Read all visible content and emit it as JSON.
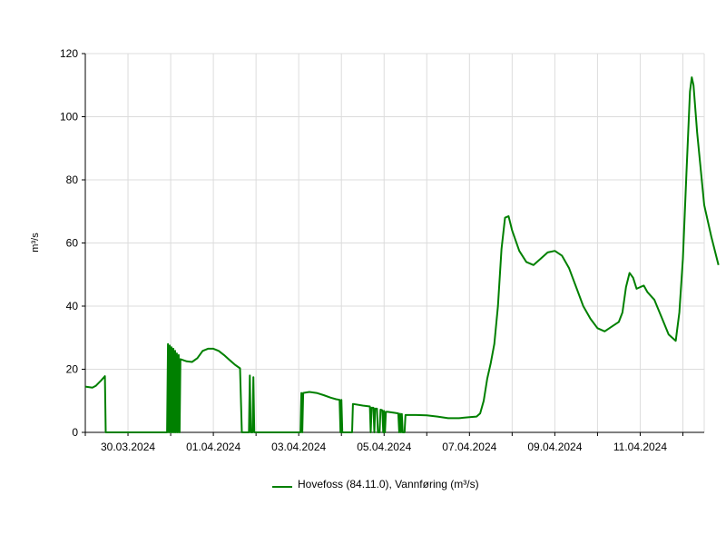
{
  "chart_data": {
    "type": "line",
    "ylabel": "m³/s",
    "ylim": [
      0,
      120
    ],
    "yticks": [
      0,
      20,
      40,
      60,
      80,
      100,
      120
    ],
    "x_start": "29.03.2024 00:00",
    "x_end": "12.04.2024 12:00",
    "xtick_labels": [
      "30.03.2024",
      "01.04.2024",
      "03.04.2024",
      "05.04.2024",
      "07.04.2024",
      "09.04.2024",
      "11.04.2024"
    ],
    "grid": true,
    "series": [
      {
        "name": "Hovefoss (84.11.0), Vannføring (m³/s)",
        "color": "#008000",
        "points": [
          [
            "29.03.2024 00:00",
            14.5
          ],
          [
            "29.03.2024 04:00",
            14.2
          ],
          [
            "29.03.2024 06:00",
            14.8
          ],
          [
            "29.03.2024 09:00",
            16.5
          ],
          [
            "29.03.2024 11:00",
            17.8
          ],
          [
            "29.03.2024 11:30",
            0
          ],
          [
            "30.03.2024 22:00",
            0
          ],
          [
            "30.03.2024 22:30",
            28.0
          ],
          [
            "30.03.2024 23:00",
            0
          ],
          [
            "30.03.2024 23:30",
            27.5
          ],
          [
            "31.03.2024 00:00",
            0
          ],
          [
            "31.03.2024 00:30",
            27.0
          ],
          [
            "31.03.2024 01:00",
            0
          ],
          [
            "31.03.2024 01:30",
            26.5
          ],
          [
            "31.03.2024 02:00",
            0
          ],
          [
            "31.03.2024 02:30",
            25.8
          ],
          [
            "31.03.2024 03:00",
            0
          ],
          [
            "31.03.2024 03:30",
            25.0
          ],
          [
            "31.03.2024 04:00",
            0
          ],
          [
            "31.03.2024 04:30",
            24.5
          ],
          [
            "31.03.2024 05:00",
            0
          ],
          [
            "31.03.2024 05:30",
            23.2
          ],
          [
            "31.03.2024 09:00",
            22.5
          ],
          [
            "31.03.2024 12:00",
            22.3
          ],
          [
            "31.03.2024 15:00",
            23.5
          ],
          [
            "31.03.2024 18:00",
            25.8
          ],
          [
            "31.03.2024 21:00",
            26.5
          ],
          [
            "01.04.2024 00:00",
            26.5
          ],
          [
            "01.04.2024 03:00",
            25.8
          ],
          [
            "01.04.2024 06:00",
            24.5
          ],
          [
            "01.04.2024 09:00",
            23.0
          ],
          [
            "01.04.2024 12:00",
            21.5
          ],
          [
            "01.04.2024 15:00",
            20.3
          ],
          [
            "01.04.2024 16:00",
            0
          ],
          [
            "01.04.2024 20:00",
            0
          ],
          [
            "01.04.2024 20:30",
            18.0
          ],
          [
            "01.04.2024 21:00",
            0
          ],
          [
            "01.04.2024 22:00",
            0
          ],
          [
            "01.04.2024 22:30",
            17.5
          ],
          [
            "01.04.2024 23:00",
            0
          ],
          [
            "03.04.2024 01:00",
            0
          ],
          [
            "03.04.2024 01:30",
            12.5
          ],
          [
            "03.04.2024 02:00",
            0
          ],
          [
            "03.04.2024 02:30",
            12.5
          ],
          [
            "03.04.2024 06:00",
            12.8
          ],
          [
            "03.04.2024 10:00",
            12.5
          ],
          [
            "03.04.2024 14:00",
            11.8
          ],
          [
            "03.04.2024 18:00",
            11.0
          ],
          [
            "03.04.2024 21:00",
            10.5
          ],
          [
            "03.04.2024 23:00",
            10.3
          ],
          [
            "03.04.2024 23:30",
            0
          ],
          [
            "04.04.2024 00:00",
            10.3
          ],
          [
            "04.04.2024 00:30",
            0
          ],
          [
            "04.04.2024 06:00",
            0
          ],
          [
            "04.04.2024 06:30",
            9.0
          ],
          [
            "04.04.2024 12:00",
            8.5
          ],
          [
            "04.04.2024 16:00",
            8.2
          ],
          [
            "04.04.2024 16:30",
            0
          ],
          [
            "04.04.2024 17:00",
            7.8
          ],
          [
            "04.04.2024 18:00",
            7.8
          ],
          [
            "04.04.2024 18:30",
            0
          ],
          [
            "04.04.2024 19:00",
            7.5
          ],
          [
            "04.04.2024 20:00",
            7.5
          ],
          [
            "04.04.2024 20:30",
            0
          ],
          [
            "04.04.2024 21:30",
            0
          ],
          [
            "04.04.2024 22:00",
            7.2
          ],
          [
            "04.04.2024 23:00",
            7.0
          ],
          [
            "04.04.2024 23:30",
            0
          ],
          [
            "05.04.2024 00:00",
            6.8
          ],
          [
            "05.04.2024 00:30",
            0
          ],
          [
            "05.04.2024 01:00",
            6.5
          ],
          [
            "05.04.2024 02:00",
            6.5
          ],
          [
            "05.04.2024 06:00",
            6.2
          ],
          [
            "05.04.2024 08:00",
            6.0
          ],
          [
            "05.04.2024 08:30",
            0
          ],
          [
            "05.04.2024 09:00",
            5.9
          ],
          [
            "05.04.2024 09:30",
            0
          ],
          [
            "05.04.2024 10:00",
            5.8
          ],
          [
            "05.04.2024 10:30",
            0
          ],
          [
            "05.04.2024 11:30",
            0
          ],
          [
            "05.04.2024 12:00",
            5.5
          ],
          [
            "05.04.2024 18:00",
            5.5
          ],
          [
            "06.04.2024 00:00",
            5.4
          ],
          [
            "06.04.2024 06:00",
            5.0
          ],
          [
            "06.04.2024 12:00",
            4.5
          ],
          [
            "06.04.2024 18:00",
            4.5
          ],
          [
            "07.04.2024 00:00",
            4.8
          ],
          [
            "07.04.2024 04:00",
            5.0
          ],
          [
            "07.04.2024 06:00",
            6.0
          ],
          [
            "07.04.2024 08:00",
            10.0
          ],
          [
            "07.04.2024 10:00",
            17.0
          ],
          [
            "07.04.2024 12:00",
            22.0
          ],
          [
            "07.04.2024 14:00",
            28.0
          ],
          [
            "07.04.2024 16:00",
            40.0
          ],
          [
            "07.04.2024 18:00",
            58.0
          ],
          [
            "07.04.2024 20:00",
            68.0
          ],
          [
            "07.04.2024 22:00",
            68.5
          ],
          [
            "08.04.2024 00:00",
            64.0
          ],
          [
            "08.04.2024 04:00",
            57.5
          ],
          [
            "08.04.2024 08:00",
            54.0
          ],
          [
            "08.04.2024 12:00",
            53.0
          ],
          [
            "08.04.2024 16:00",
            55.0
          ],
          [
            "08.04.2024 20:00",
            57.0
          ],
          [
            "09.04.2024 00:00",
            57.5
          ],
          [
            "09.04.2024 04:00",
            56.0
          ],
          [
            "09.04.2024 08:00",
            52.0
          ],
          [
            "09.04.2024 12:00",
            46.0
          ],
          [
            "09.04.2024 16:00",
            40.0
          ],
          [
            "09.04.2024 20:00",
            36.0
          ],
          [
            "10.04.2024 00:00",
            33.0
          ],
          [
            "10.04.2024 04:00",
            32.0
          ],
          [
            "10.04.2024 08:00",
            33.5
          ],
          [
            "10.04.2024 12:00",
            35.0
          ],
          [
            "10.04.2024 14:00",
            38.0
          ],
          [
            "10.04.2024 16:00",
            46.0
          ],
          [
            "10.04.2024 18:00",
            50.5
          ],
          [
            "10.04.2024 20:00",
            49.0
          ],
          [
            "10.04.2024 22:00",
            45.5
          ],
          [
            "11.04.2024 00:00",
            46.0
          ],
          [
            "11.04.2024 02:00",
            46.5
          ],
          [
            "11.04.2024 04:00",
            44.5
          ],
          [
            "11.04.2024 08:00",
            42.0
          ],
          [
            "11.04.2024 12:00",
            36.5
          ],
          [
            "11.04.2024 16:00",
            31.0
          ],
          [
            "11.04.2024 20:00",
            29.0
          ],
          [
            "11.04.2024 22:00",
            38.0
          ],
          [
            "12.04.2024 00:00",
            55.0
          ],
          [
            "12.04.2024 02:00",
            82.0
          ],
          [
            "12.04.2024 04:00",
            108.0
          ],
          [
            "12.04.2024 05:00",
            112.5
          ],
          [
            "12.04.2024 06:00",
            110.0
          ],
          [
            "12.04.2024 08:00",
            95.0
          ],
          [
            "12.04.2024 12:00",
            72.0
          ],
          [
            "12.04.2024 16:00",
            62.0
          ],
          [
            "12.04.2024 20:00",
            53.0
          ]
        ]
      }
    ]
  }
}
